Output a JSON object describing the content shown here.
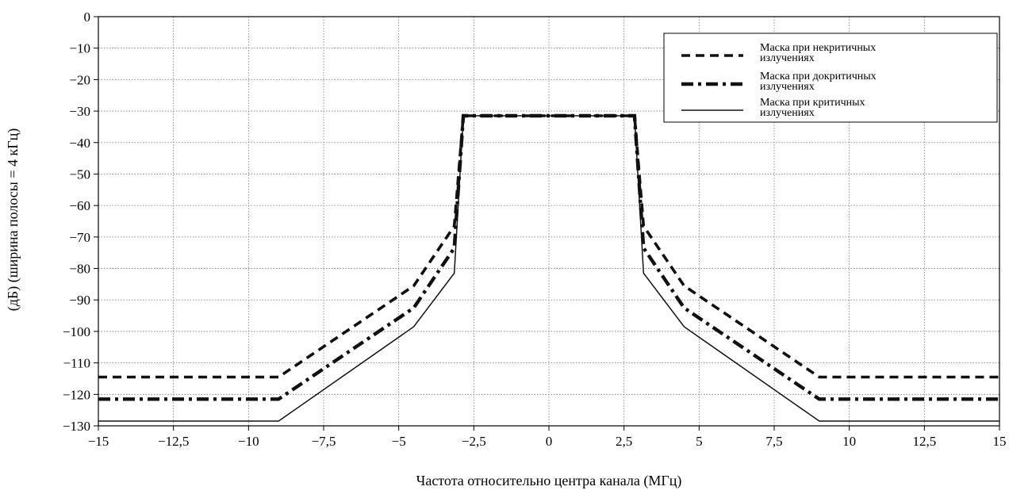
{
  "chart_data": {
    "type": "line",
    "xlabel": "Частота относительно центра канала (МГц)",
    "ylabel": "(дБ) (ширина полосы = 4 кГц)",
    "xlim": [
      -15,
      15
    ],
    "ylim": [
      -130,
      0
    ],
    "grid": true,
    "legend_position": "top-right",
    "x_ticks": [
      -15,
      -12.5,
      -10,
      -7.5,
      -5,
      -2.5,
      0,
      2.5,
      5,
      7.5,
      10,
      12.5,
      15
    ],
    "x_tick_labels": [
      "−15",
      "−12,5",
      "−10",
      "−7,5",
      "−5",
      "−2,5",
      "0",
      "2,5",
      "5",
      "7,5",
      "10",
      "12,5",
      "15"
    ],
    "y_ticks": [
      0,
      -10,
      -20,
      -30,
      -40,
      -50,
      -60,
      -70,
      -80,
      -90,
      -100,
      -110,
      -120,
      -130
    ],
    "y_tick_labels": [
      "0",
      "−10",
      "−20",
      "−30",
      "−40",
      "−50",
      "−60",
      "−70",
      "−80",
      "−90",
      "−100",
      "−110",
      "−120",
      "−130"
    ],
    "series": [
      {
        "name": "Маска при некритичных излучениях",
        "style": "dashed-thick",
        "x": [
          -15,
          -9,
          -4.5,
          -3.15,
          -2.85,
          2.85,
          3.15,
          4.5,
          9,
          15
        ],
        "y": [
          -114.5,
          -114.5,
          -85.5,
          -66.5,
          -31.5,
          -31.5,
          -66.5,
          -85.5,
          -114.5,
          -114.5
        ]
      },
      {
        "name": "Маска при докритичных излучениях",
        "style": "dash-dot-thick",
        "x": [
          -15,
          -9,
          -4.5,
          -3.15,
          -2.85,
          2.85,
          3.15,
          4.5,
          9,
          15
        ],
        "y": [
          -121.5,
          -121.5,
          -92.5,
          -73.5,
          -31.5,
          -31.5,
          -73.5,
          -92.5,
          -121.5,
          -121.5
        ]
      },
      {
        "name": "Маска при критичных излучениях",
        "style": "solid",
        "x": [
          -15,
          -9,
          -4.5,
          -3.15,
          -2.85,
          2.85,
          3.15,
          4.5,
          9,
          15
        ],
        "y": [
          -128.5,
          -128.5,
          -98.5,
          -81.5,
          -31.5,
          -31.5,
          -81.5,
          -98.5,
          -128.5,
          -128.5
        ]
      }
    ],
    "legend_lines": [
      [
        "Маска при некритичных",
        "излучениях"
      ],
      [
        "Маска при докритичных",
        "излучениях"
      ],
      [
        "Маска при критичных",
        "излучениях"
      ]
    ]
  }
}
